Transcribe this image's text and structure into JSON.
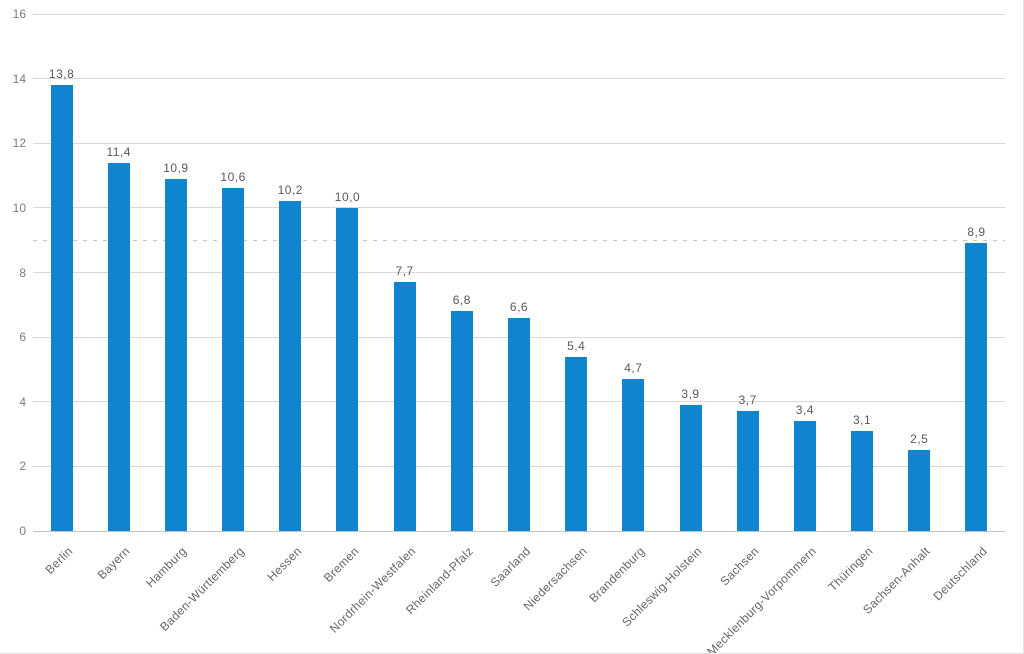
{
  "frame": {
    "background": "#ffffff",
    "edge_border_color": "#e3e3e1"
  },
  "chart_data": {
    "type": "bar",
    "title": "",
    "categories": [
      "Berlin",
      "Bayern",
      "Hamburg",
      "Baden-Württemberg",
      "Hessen",
      "Bremen",
      "Nordrhein-Westfalen",
      "Rheinland-Pfalz",
      "Saarland",
      "Niedersachsen",
      "Brandenburg",
      "Schleswig-Holstein",
      "Sachsen",
      "Mecklenburg-Vorpommern",
      "Thüringen",
      "Sachsen-Anhalt",
      "Deutschland"
    ],
    "values": [
      13.8,
      11.4,
      10.9,
      10.6,
      10.2,
      10.0,
      7.7,
      6.8,
      6.6,
      5.4,
      4.7,
      3.9,
      3.7,
      3.4,
      3.1,
      2.5,
      8.9
    ],
    "value_labels": [
      "13,8",
      "11,4",
      "10,9",
      "10,6",
      "10,2",
      "10,0",
      "7,7",
      "6,8",
      "6,6",
      "5,4",
      "4,7",
      "3,9",
      "3,7",
      "3,4",
      "3,1",
      "2,5",
      "8,9"
    ],
    "decimal_separator": ",",
    "xlabel": "",
    "ylabel": "",
    "y_axis": {
      "min": 0,
      "max": 16,
      "step": 2,
      "tick_labels": [
        "0",
        "2",
        "4",
        "6",
        "8",
        "10",
        "12",
        "14",
        "16"
      ]
    },
    "x_axis": {
      "label_rotation_deg": -45
    },
    "reference_line": {
      "value": 9.0,
      "style": "dashed"
    },
    "grid": true,
    "legend": false
  },
  "colors": {
    "bar": "#0f85d0",
    "gridline": "#d7d7d7",
    "baseline": "#c2c2c2",
    "reference_line": "#c6c6c6",
    "y_tick_text": "#7b7b7b",
    "value_label_text": "#595959",
    "category_label_text": "#666666"
  }
}
